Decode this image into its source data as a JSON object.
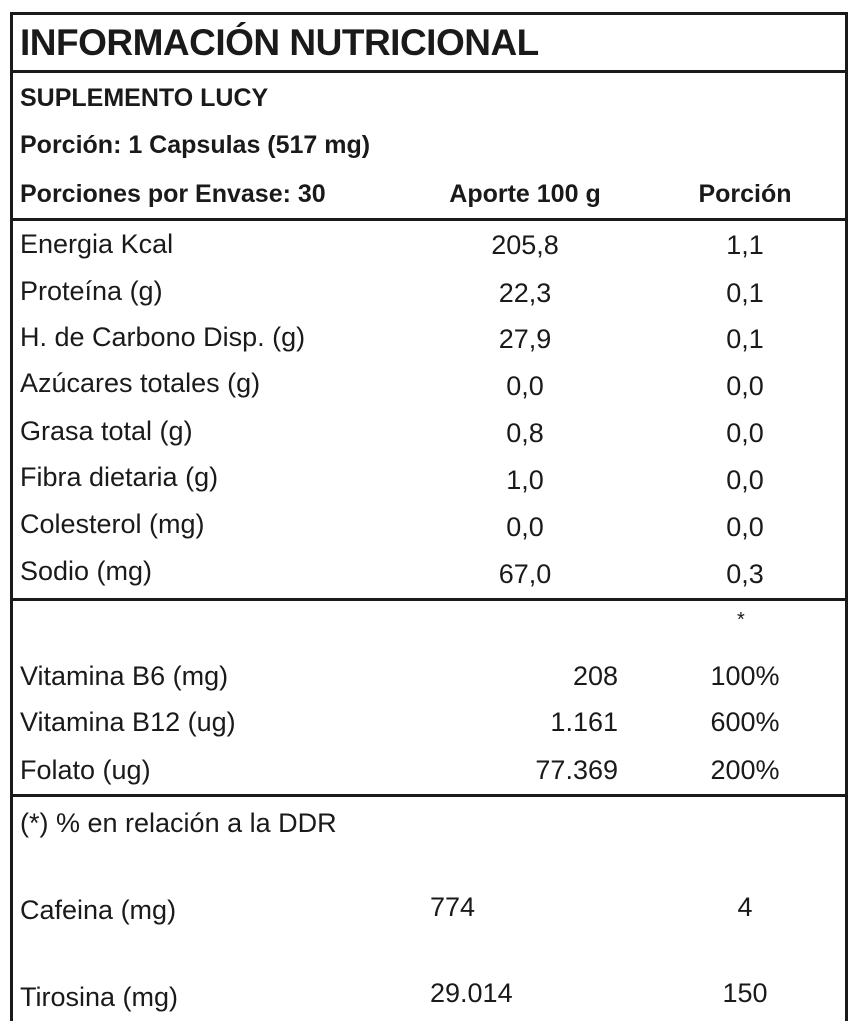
{
  "title": "INFORMACIÓN NUTRICIONAL",
  "product": "SUPLEMENTO LUCY",
  "serving": "Porción:  1 Capsulas (517 mg)",
  "servings_per_container": "Porciones por Envase: 30",
  "col_100g": "Aporte 100 g",
  "col_portion": "Porción",
  "nutrients": [
    {
      "label": "Energia Kcal",
      "v100": "205,8",
      "portion": "1,1"
    },
    {
      "label": "Proteína (g)",
      "v100": "22,3",
      "portion": "0,1"
    },
    {
      "label": "H. de Carbono Disp. (g)",
      "v100": "27,9",
      "portion": "0,1"
    },
    {
      "label": "Azúcares totales (g)",
      "v100": "0,0",
      "portion": "0,0"
    },
    {
      "label": "Grasa total (g)",
      "v100": "0,8",
      "portion": "0,0"
    },
    {
      "label": "Fibra dietaria (g)",
      "v100": "1,0",
      "portion": "0,0"
    },
    {
      "label": "Colesterol (mg)",
      "v100": "0,0",
      "portion": "0,0"
    },
    {
      "label": "Sodio (mg)",
      "v100": "67,0",
      "portion": "0,3"
    }
  ],
  "ddr_asterisk": "*",
  "vitamins": [
    {
      "label": "Vitamina B6 (mg)",
      "value": "208",
      "pct": "100%"
    },
    {
      "label": "Vitamina B12 (ug)",
      "value": "1.161",
      "pct": "600%"
    },
    {
      "label": "Folato (ug)",
      "value": "77.369",
      "pct": "200%"
    }
  ],
  "ddr_note": "(*) % en relación a la DDR",
  "extras": [
    {
      "label": "Cafeina (mg)",
      "value": "774",
      "portion": "4"
    },
    {
      "label": "Tirosina (mg)",
      "value": "29.014",
      "portion": "150"
    }
  ]
}
